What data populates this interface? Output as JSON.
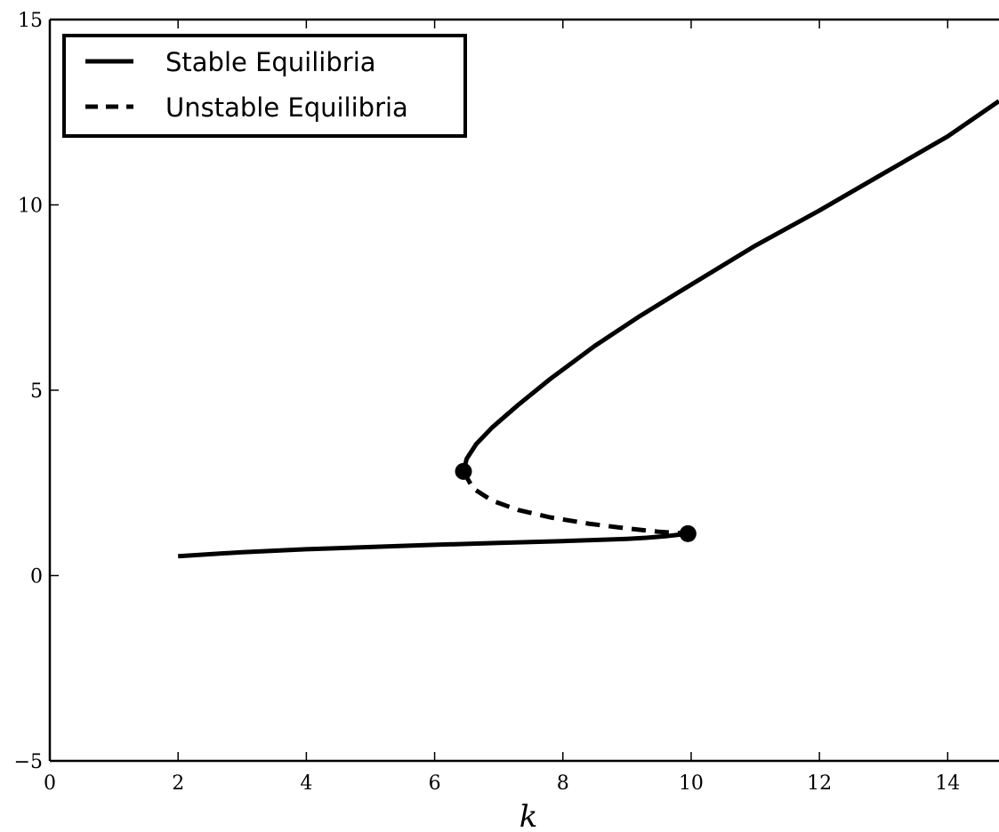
{
  "chart_data": {
    "type": "line",
    "title": "",
    "xlabel": "k",
    "ylabel": "",
    "xlim": [
      0,
      14.8
    ],
    "ylim": [
      -5,
      15
    ],
    "xticks": [
      0,
      2,
      4,
      6,
      8,
      10,
      12,
      14
    ],
    "yticks": [
      -5,
      0,
      5,
      10,
      15
    ],
    "xtick_labels": [
      "0",
      "2",
      "4",
      "6",
      "8",
      "10",
      "12",
      "14"
    ],
    "ytick_labels": [
      "−5",
      "0",
      "5",
      "10",
      "15"
    ],
    "grid": false,
    "legend_position": "top-left",
    "series": [
      {
        "name": "Stable Equilibria",
        "style": "solid",
        "color": "#000000",
        "segments": [
          {
            "x": [
              2.0,
              3.0,
              4.0,
              5.0,
              6.0,
              7.0,
              8.0,
              8.5,
              9.0,
              9.3,
              9.6,
              9.8,
              9.95
            ],
            "y": [
              0.52,
              0.63,
              0.71,
              0.77,
              0.83,
              0.88,
              0.93,
              0.96,
              0.99,
              1.02,
              1.06,
              1.1,
              1.13
            ]
          },
          {
            "x": [
              6.45,
              6.5,
              6.65,
              6.9,
              7.3,
              7.8,
              8.5,
              9.2,
              10.0,
              11.0,
              12.0,
              13.0,
              14.0,
              14.8
            ],
            "y": [
              2.81,
              3.15,
              3.55,
              4.0,
              4.6,
              5.3,
              6.2,
              7.0,
              7.85,
              8.9,
              9.85,
              10.85,
              11.85,
              12.8
            ]
          }
        ]
      },
      {
        "name": "Unstable Equilibria",
        "style": "dashed",
        "color": "#000000",
        "segments": [
          {
            "x": [
              6.45,
              6.6,
              6.9,
              7.3,
              7.8,
              8.4,
              9.0,
              9.5,
              9.95
            ],
            "y": [
              2.81,
              2.35,
              2.02,
              1.77,
              1.57,
              1.4,
              1.27,
              1.18,
              1.13
            ]
          }
        ]
      }
    ],
    "bifurcation_points": [
      {
        "x": 6.45,
        "y": 2.81
      },
      {
        "x": 9.95,
        "y": 1.13
      }
    ]
  }
}
